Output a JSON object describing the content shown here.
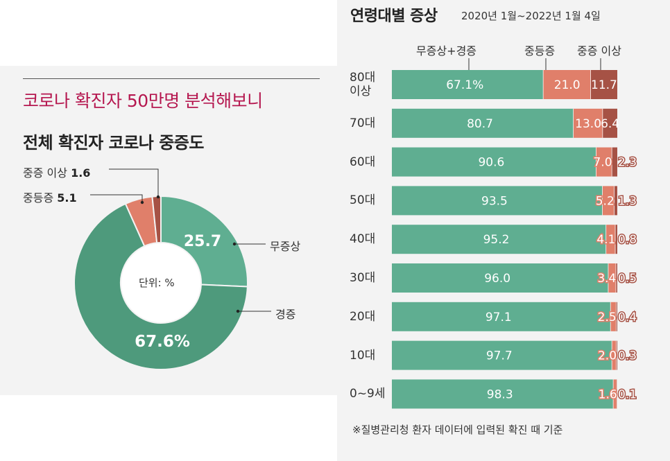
{
  "headline": "코로나 확진자 50만명 분석해보니",
  "colors": {
    "asymptomatic": "#5fae91",
    "mild": "#4e9a7c",
    "moderate": "#e07f6a",
    "severe": "#a65245",
    "headline": "#b5174f"
  },
  "chart_data": [
    {
      "type": "pie",
      "title": "전체 확진자 코로나 중증도",
      "unit_label": "단위: %",
      "slices": [
        {
          "name": "무증상",
          "value": 25.7,
          "label": "25.7"
        },
        {
          "name": "경증",
          "value": 67.6,
          "label": "67.6%"
        },
        {
          "name": "중등증",
          "value": 5.1,
          "label_name": "중등증",
          "label_value": "5.1"
        },
        {
          "name": "중증 이상",
          "value": 1.6,
          "label_name": "중증 이상",
          "label_value": "1.6"
        }
      ]
    },
    {
      "type": "bar",
      "orientation": "horizontal",
      "stacked": true,
      "title": "연령대별 증상",
      "period": "2020년 1월~2022년 1월 4일",
      "categories": [
        "80대\n이상",
        "70대",
        "60대",
        "50대",
        "40대",
        "30대",
        "20대",
        "10대",
        "0~9세"
      ],
      "series": [
        {
          "name": "무증상+경증",
          "values": [
            67.1,
            80.7,
            90.6,
            93.5,
            95.2,
            96.0,
            97.1,
            97.7,
            98.3
          ],
          "labels": [
            "67.1%",
            "80.7",
            "90.6",
            "93.5",
            "95.2",
            "96.0",
            "97.1",
            "97.7",
            "98.3"
          ]
        },
        {
          "name": "중등증",
          "values": [
            21.0,
            13.0,
            7.0,
            5.2,
            4.1,
            3.4,
            2.5,
            2.0,
            1.6
          ],
          "labels": [
            "21.0",
            "13.0",
            "7.0",
            "5.2",
            "4.1",
            "3.4",
            "2.5",
            "2.0",
            "1.6"
          ]
        },
        {
          "name": "중증 이상",
          "values": [
            11.7,
            6.4,
            2.3,
            1.3,
            0.8,
            0.5,
            0.4,
            0.3,
            0.1
          ],
          "labels": [
            "11.7",
            "6.4",
            "2.3",
            "1.3",
            "0.8",
            "0.5",
            "0.4",
            "0.3",
            "0.1"
          ]
        }
      ],
      "footnote": "※질병관리청 환자 데이터에 입력된 확진 때 기준"
    }
  ]
}
